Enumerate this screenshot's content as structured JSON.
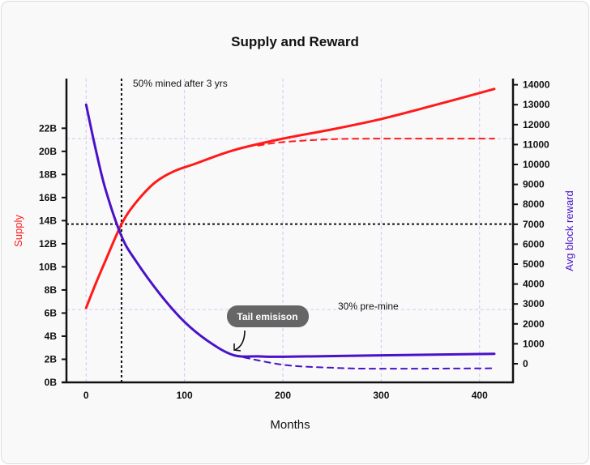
{
  "chart_data": {
    "type": "line",
    "title": "Supply and Reward",
    "xlabel": "Months",
    "ylabel_left": "Supply",
    "ylabel_right": "Avg block reward",
    "xlim": [
      -20,
      434
    ],
    "ylim_left": [
      0,
      26.3
    ],
    "ylim_right": [
      -935,
      14310
    ],
    "x_ticks": [
      "0",
      "100",
      "200",
      "300",
      "400"
    ],
    "x_tick_values": [
      0,
      100,
      200,
      300,
      400
    ],
    "left_ticks": [
      "0B",
      "2B",
      "4B",
      "6B",
      "8B",
      "10B",
      "12B",
      "14B",
      "16B",
      "18B",
      "20B",
      "22B"
    ],
    "left_tick_values": [
      0,
      2,
      4,
      6,
      8,
      10,
      12,
      14,
      16,
      18,
      20,
      22
    ],
    "right_ticks": [
      "0",
      "1000",
      "2000",
      "3000",
      "4000",
      "5000",
      "6000",
      "7000",
      "8000",
      "9000",
      "10000",
      "11000",
      "12000",
      "13000",
      "14000"
    ],
    "right_tick_values": [
      0,
      1000,
      2000,
      3000,
      4000,
      5000,
      6000,
      7000,
      8000,
      9000,
      10000,
      11000,
      12000,
      13000,
      14000
    ],
    "grid": "vertical dashed lavender at x ticks",
    "colors": {
      "supply": "#ff1a1a",
      "reward": "#4a12c8",
      "grid": "#d6c4f5",
      "annotation_bg": "#666666"
    },
    "series": [
      {
        "axis": "left",
        "style": "solid",
        "color": "#ff1a1a",
        "points": [
          [
            0,
            6.45
          ],
          [
            10,
            8.6
          ],
          [
            20,
            10.6
          ],
          [
            36,
            13.7
          ],
          [
            50,
            15.5
          ],
          [
            70,
            17.3
          ],
          [
            90,
            18.3
          ],
          [
            110,
            18.9
          ],
          [
            150,
            20.1
          ],
          [
            200,
            21.1
          ],
          [
            250,
            21.9
          ],
          [
            300,
            22.8
          ],
          [
            350,
            23.9
          ],
          [
            415,
            25.4
          ]
        ]
      },
      {
        "axis": "left",
        "style": "dashed",
        "color": "#ff1a1a",
        "points": [
          [
            175,
            20.5
          ],
          [
            200,
            20.8
          ],
          [
            250,
            21.05
          ],
          [
            300,
            21.1
          ],
          [
            415,
            21.1
          ]
        ]
      },
      {
        "axis": "right",
        "style": "solid",
        "color": "#4a12c8",
        "points": [
          [
            0,
            13000
          ],
          [
            10,
            10700
          ],
          [
            20,
            8700
          ],
          [
            36,
            6400
          ],
          [
            50,
            5200
          ],
          [
            75,
            3500
          ],
          [
            100,
            2100
          ],
          [
            125,
            1100
          ],
          [
            150,
            430
          ],
          [
            175,
            370
          ],
          [
            200,
            350
          ],
          [
            300,
            420
          ],
          [
            415,
            500
          ]
        ]
      },
      {
        "axis": "right",
        "style": "dashed",
        "color": "#4a12c8",
        "points": [
          [
            150,
            430
          ],
          [
            200,
            -50
          ],
          [
            250,
            -200
          ],
          [
            300,
            -250
          ],
          [
            415,
            -230
          ]
        ]
      }
    ],
    "reference_lines": [
      {
        "orientation": "vertical",
        "x": 36,
        "style": "black dotted"
      },
      {
        "orientation": "horizontal",
        "axis": "left",
        "y": 13.7,
        "style": "black dotted"
      },
      {
        "orientation": "horizontal",
        "axis": "left",
        "y": 21.1,
        "style": "lavender dashed"
      },
      {
        "orientation": "horizontal",
        "axis": "left",
        "y": 6.3,
        "style": "lavender dashed"
      }
    ],
    "annotations": {
      "mined": "50% mined after 3 yrs",
      "premine": "30% pre-mine",
      "tail": "Tail emisison"
    }
  }
}
